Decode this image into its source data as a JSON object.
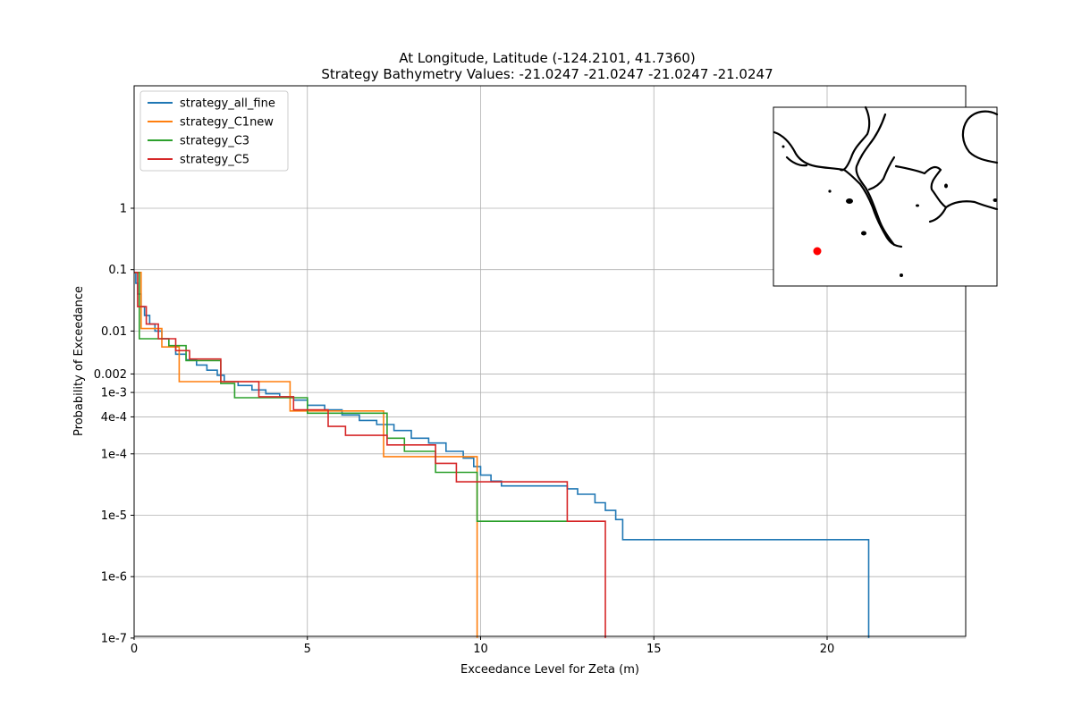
{
  "chart_data": {
    "type": "line",
    "title": "At Longitude, Latitude (-124.2101,  41.7360)",
    "subtitle": "Strategy Bathymetry Values:  -21.0247  -21.0247  -21.0247  -21.0247",
    "xlabel": "Exceedance Level for Zeta (m)",
    "ylabel": "Probability of Exceedance",
    "xlim": [
      0,
      24
    ],
    "ylim": [
      1e-07,
      100
    ],
    "y_scale": "log",
    "grid": true,
    "legend_position": "upper left",
    "x_ticks": [
      0,
      5,
      10,
      15,
      20
    ],
    "y_ticks": [
      {
        "value": 1,
        "label": "1"
      },
      {
        "value": 0.1,
        "label": "0.1"
      },
      {
        "value": 0.01,
        "label": "0.01"
      },
      {
        "value": 0.002,
        "label": "0.002"
      },
      {
        "value": 0.001,
        "label": "1e-3"
      },
      {
        "value": 0.0004,
        "label": "4e-4"
      },
      {
        "value": 0.0001,
        "label": "1e-4"
      },
      {
        "value": 1e-05,
        "label": "1e-5"
      },
      {
        "value": 1e-06,
        "label": "1e-6"
      },
      {
        "value": 1e-07,
        "label": "1e-7"
      }
    ],
    "series": [
      {
        "name": "strategy_all_fine",
        "color": "#1f77b4",
        "step": true,
        "points": [
          [
            0,
            0.09
          ],
          [
            0.05,
            0.06
          ],
          [
            0.1,
            0.04
          ],
          [
            0.2,
            0.025
          ],
          [
            0.3,
            0.018
          ],
          [
            0.45,
            0.013
          ],
          [
            0.6,
            0.01
          ],
          [
            0.8,
            0.0075
          ],
          [
            1.0,
            0.0055
          ],
          [
            1.2,
            0.0042
          ],
          [
            1.5,
            0.0034
          ],
          [
            1.8,
            0.0028
          ],
          [
            2.1,
            0.0023
          ],
          [
            2.4,
            0.0019
          ],
          [
            2.6,
            0.0015
          ],
          [
            3.0,
            0.0013
          ],
          [
            3.4,
            0.0011
          ],
          [
            3.8,
            0.00095
          ],
          [
            4.2,
            0.00085
          ],
          [
            4.6,
            0.00075
          ],
          [
            5.0,
            0.00062
          ],
          [
            5.5,
            0.00052
          ],
          [
            6.0,
            0.00043
          ],
          [
            6.5,
            0.00035
          ],
          [
            7.0,
            0.0003
          ],
          [
            7.5,
            0.00024
          ],
          [
            8.0,
            0.00018
          ],
          [
            8.5,
            0.00015
          ],
          [
            9.0,
            0.00011
          ],
          [
            9.5,
            8.5e-05
          ],
          [
            9.8,
            6.2e-05
          ],
          [
            10.0,
            4.5e-05
          ],
          [
            10.3,
            3.6e-05
          ],
          [
            10.6,
            3e-05
          ],
          [
            12.2,
            3e-05
          ],
          [
            12.5,
            2.7e-05
          ],
          [
            12.8,
            2.2e-05
          ],
          [
            13.3,
            1.6e-05
          ],
          [
            13.6,
            1.2e-05
          ],
          [
            13.9,
            8.5e-06
          ],
          [
            14.1,
            4e-06
          ],
          [
            21.2,
            4e-06
          ],
          [
            21.2,
            1e-07
          ]
        ]
      },
      {
        "name": "strategy_C1new",
        "color": "#ff7f0e",
        "step": true,
        "points": [
          [
            0,
            0.09
          ],
          [
            0.2,
            0.09
          ],
          [
            0.2,
            0.011
          ],
          [
            0.8,
            0.011
          ],
          [
            0.8,
            0.0055
          ],
          [
            1.3,
            0.0055
          ],
          [
            1.3,
            0.0015
          ],
          [
            4.5,
            0.0015
          ],
          [
            4.5,
            0.0005
          ],
          [
            7.2,
            0.0005
          ],
          [
            7.2,
            9e-05
          ],
          [
            9.9,
            9e-05
          ],
          [
            9.9,
            1e-07
          ]
        ]
      },
      {
        "name": "strategy_C3",
        "color": "#2ca02c",
        "step": true,
        "points": [
          [
            0,
            0.09
          ],
          [
            0.15,
            0.09
          ],
          [
            0.15,
            0.0075
          ],
          [
            1.0,
            0.0075
          ],
          [
            1.0,
            0.0058
          ],
          [
            1.5,
            0.0058
          ],
          [
            1.5,
            0.0033
          ],
          [
            2.5,
            0.0033
          ],
          [
            2.5,
            0.0014
          ],
          [
            2.9,
            0.0014
          ],
          [
            2.9,
            0.00082
          ],
          [
            5.0,
            0.00082
          ],
          [
            5.0,
            0.00046
          ],
          [
            7.3,
            0.00046
          ],
          [
            7.3,
            0.00018
          ],
          [
            7.8,
            0.00018
          ],
          [
            7.8,
            0.00011
          ],
          [
            8.7,
            0.00011
          ],
          [
            8.7,
            5e-05
          ],
          [
            9.9,
            5e-05
          ],
          [
            9.9,
            8e-06
          ],
          [
            12.5,
            8e-06
          ]
        ]
      },
      {
        "name": "strategy_C5",
        "color": "#d62728",
        "step": true,
        "points": [
          [
            0,
            0.09
          ],
          [
            0.1,
            0.09
          ],
          [
            0.1,
            0.025
          ],
          [
            0.35,
            0.025
          ],
          [
            0.35,
            0.013
          ],
          [
            0.7,
            0.013
          ],
          [
            0.7,
            0.0075
          ],
          [
            1.2,
            0.0075
          ],
          [
            1.2,
            0.0048
          ],
          [
            1.6,
            0.0048
          ],
          [
            1.6,
            0.0035
          ],
          [
            2.5,
            0.0035
          ],
          [
            2.5,
            0.0015
          ],
          [
            3.6,
            0.0015
          ],
          [
            3.6,
            0.00085
          ],
          [
            4.6,
            0.00085
          ],
          [
            4.6,
            0.00052
          ],
          [
            5.6,
            0.00052
          ],
          [
            5.6,
            0.00028
          ],
          [
            6.1,
            0.00028
          ],
          [
            6.1,
            0.0002
          ],
          [
            7.3,
            0.0002
          ],
          [
            7.3,
            0.00014
          ],
          [
            8.7,
            0.00014
          ],
          [
            8.7,
            7e-05
          ],
          [
            9.3,
            7e-05
          ],
          [
            9.3,
            3.5e-05
          ],
          [
            12.5,
            3.5e-05
          ],
          [
            12.5,
            8e-06
          ],
          [
            13.6,
            8e-06
          ],
          [
            13.6,
            1e-07
          ]
        ]
      }
    ]
  },
  "inset_map": {
    "marker_color": "#ff0000"
  }
}
